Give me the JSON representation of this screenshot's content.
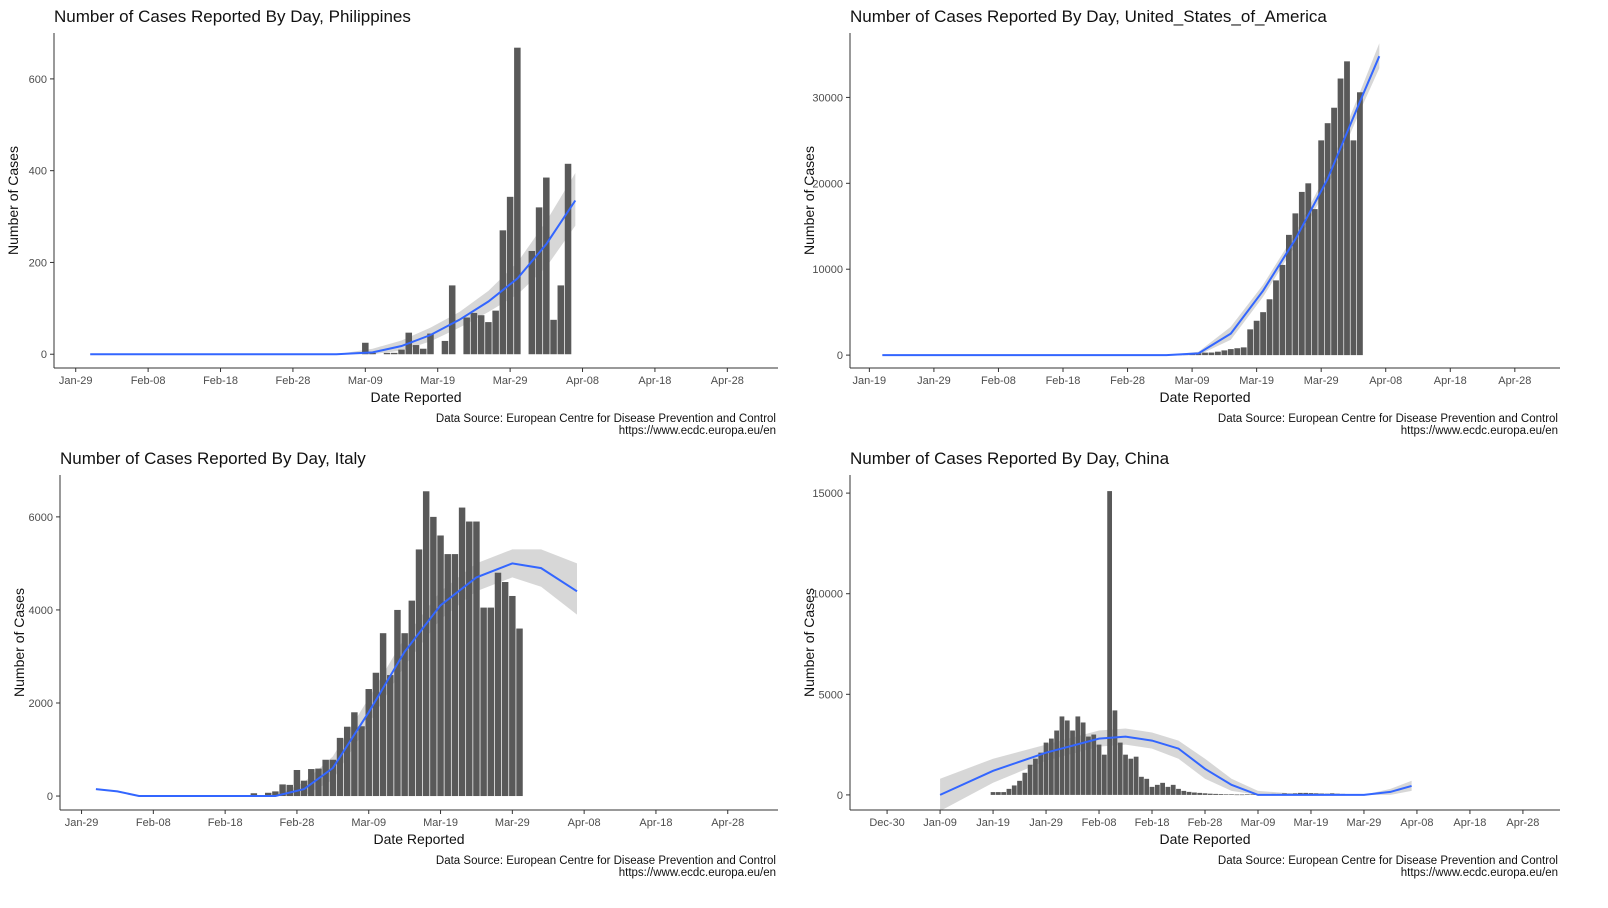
{
  "caption_line1": "Data Source: European Centre for Disease Prevention and Control",
  "caption_line2": "https://www.ecdc.europa.eu/en",
  "chart_data": [
    {
      "type": "bar",
      "title": "Number of Cases Reported By Day, Philippines",
      "xlabel": "Date Reported",
      "ylabel": "Number of Cases",
      "colors": {
        "bars": "#595959",
        "trend": "#3366ff",
        "band": "#bdbdbd"
      },
      "xlim": [
        "2020-01-26",
        "2020-05-05"
      ],
      "ylim": [
        -30,
        700
      ],
      "x_ticks": [
        "2020-01-29",
        "2020-02-08",
        "2020-02-18",
        "2020-02-28",
        "2020-03-09",
        "2020-03-19",
        "2020-03-29",
        "2020-04-08",
        "2020-04-18",
        "2020-04-28"
      ],
      "x_tick_labels": [
        "Jan-29",
        "Feb-08",
        "Feb-18",
        "Feb-28",
        "Mar-09",
        "Mar-19",
        "Mar-29",
        "Apr-08",
        "Apr-18",
        "Apr-28"
      ],
      "y_ticks": [
        0,
        200,
        400,
        600
      ],
      "y_tick_labels": [
        "0",
        "200",
        "400",
        "600"
      ],
      "grid": false,
      "legend": "none",
      "series": [
        {
          "start": "2020-03-01",
          "values": [
            0,
            0,
            0,
            0,
            0,
            0,
            0,
            0,
            25,
            3,
            0,
            3,
            3,
            10,
            47,
            20,
            12,
            45,
            0,
            29,
            150,
            0,
            80,
            90,
            85,
            70,
            95,
            270,
            343,
            668,
            0,
            225,
            320,
            385,
            75,
            150,
            415
          ]
        }
      ],
      "trend": {
        "x": [
          "2020-01-31",
          "2020-02-18",
          "2020-03-05",
          "2020-03-10",
          "2020-03-14",
          "2020-03-18",
          "2020-03-22",
          "2020-03-26",
          "2020-03-30",
          "2020-04-03",
          "2020-04-07"
        ],
        "y": [
          0,
          0,
          0,
          4,
          18,
          42,
          75,
          115,
          165,
          240,
          335
        ],
        "lower": [
          0,
          0,
          0,
          0,
          8,
          28,
          58,
          92,
          130,
          190,
          280
        ],
        "upper": [
          0,
          0,
          0,
          12,
          30,
          58,
          92,
          138,
          200,
          290,
          395
        ]
      }
    },
    {
      "type": "bar",
      "title": "Number of Cases Reported By Day, United_States_of_America",
      "xlabel": "Date Reported",
      "ylabel": "Number of Cases",
      "colors": {
        "bars": "#595959",
        "trend": "#3366ff",
        "band": "#bdbdbd"
      },
      "xlim": [
        "2020-01-16",
        "2020-05-05"
      ],
      "ylim": [
        -1500,
        37500
      ],
      "x_ticks": [
        "2020-01-19",
        "2020-01-29",
        "2020-02-08",
        "2020-02-18",
        "2020-02-28",
        "2020-03-09",
        "2020-03-19",
        "2020-03-29",
        "2020-04-08",
        "2020-04-18",
        "2020-04-28"
      ],
      "x_tick_labels": [
        "Jan-19",
        "Jan-29",
        "Feb-08",
        "Feb-18",
        "Feb-28",
        "Mar-09",
        "Mar-19",
        "Mar-29",
        "Apr-08",
        "Apr-18",
        "Apr-28"
      ],
      "y_ticks": [
        0,
        10000,
        20000,
        30000
      ],
      "y_tick_labels": [
        "0",
        "10000",
        "20000",
        "30000"
      ],
      "grid": false,
      "legend": "none",
      "series": [
        {
          "start": "2020-03-01",
          "values": [
            15,
            10,
            20,
            30,
            40,
            60,
            80,
            100,
            120,
            200,
            290,
            300,
            400,
            550,
            700,
            800,
            900,
            3000,
            4000,
            5000,
            6500,
            8700,
            10500,
            14000,
            16500,
            19000,
            20000,
            17000,
            25000,
            27000,
            28800,
            32200,
            34200,
            25000,
            30600
          ]
        }
      ],
      "trend": {
        "x": [
          "2020-01-21",
          "2020-02-15",
          "2020-03-05",
          "2020-03-10",
          "2020-03-15",
          "2020-03-20",
          "2020-03-25",
          "2020-03-30",
          "2020-04-04",
          "2020-04-07"
        ],
        "y": [
          0,
          0,
          0,
          200,
          2500,
          7500,
          13500,
          20500,
          29500,
          34800
        ],
        "lower": [
          0,
          0,
          0,
          0,
          1800,
          6800,
          12800,
          19600,
          28400,
          33400
        ],
        "upper": [
          0,
          0,
          0,
          400,
          3300,
          8200,
          14200,
          21400,
          30600,
          36300
        ]
      }
    },
    {
      "type": "bar",
      "title": "Number of Cases Reported By Day, Italy",
      "xlabel": "Date Reported",
      "ylabel": "Number of Cases",
      "colors": {
        "bars": "#595959",
        "trend": "#3366ff",
        "band": "#bdbdbd"
      },
      "xlim": [
        "2020-01-26",
        "2020-05-05"
      ],
      "ylim": [
        -300,
        6900
      ],
      "x_ticks": [
        "2020-01-29",
        "2020-02-08",
        "2020-02-18",
        "2020-02-28",
        "2020-03-09",
        "2020-03-19",
        "2020-03-29",
        "2020-04-08",
        "2020-04-18",
        "2020-04-28"
      ],
      "x_tick_labels": [
        "Jan-29",
        "Feb-08",
        "Feb-18",
        "Feb-28",
        "Mar-09",
        "Mar-19",
        "Mar-29",
        "Apr-08",
        "Apr-18",
        "Apr-28"
      ],
      "y_ticks": [
        0,
        2000,
        4000,
        6000
      ],
      "y_tick_labels": [
        "0",
        "2000",
        "4000",
        "6000"
      ],
      "grid": false,
      "legend": "none",
      "series": [
        {
          "start": "2020-02-22",
          "values": [
            60,
            20,
            70,
            100,
            250,
            240,
            560,
            330,
            580,
            590,
            780,
            780,
            1250,
            1490,
            1800,
            1500,
            2300,
            2650,
            3500,
            2600,
            4000,
            3500,
            4200,
            5300,
            6550,
            6000,
            5600,
            5200,
            5200,
            6200,
            5900,
            5900,
            4050,
            4050,
            4800,
            4600,
            4300,
            3600
          ]
        }
      ],
      "trend": {
        "x": [
          "2020-01-31",
          "2020-02-03",
          "2020-02-06",
          "2020-02-15",
          "2020-02-25",
          "2020-02-29",
          "2020-03-04",
          "2020-03-09",
          "2020-03-14",
          "2020-03-19",
          "2020-03-24",
          "2020-03-29",
          "2020-04-02",
          "2020-04-07"
        ],
        "y": [
          150,
          100,
          0,
          0,
          0,
          150,
          600,
          1800,
          3100,
          4100,
          4700,
          5000,
          4900,
          4400
        ],
        "lower": [
          150,
          100,
          0,
          0,
          0,
          0,
          350,
          1550,
          2800,
          3800,
          4400,
          4700,
          4500,
          3900
        ],
        "upper": [
          150,
          100,
          0,
          0,
          0,
          300,
          850,
          2100,
          3400,
          4400,
          5000,
          5300,
          5300,
          5000
        ]
      }
    },
    {
      "type": "bar",
      "title": "Number of Cases Reported By Day, China",
      "xlabel": "Date Reported",
      "ylabel": "Number of Cases",
      "colors": {
        "bars": "#595959",
        "trend": "#3366ff",
        "band": "#bdbdbd"
      },
      "xlim": [
        "2019-12-23",
        "2020-05-05"
      ],
      "ylim": [
        -750,
        15900
      ],
      "x_ticks": [
        "2019-12-30",
        "2020-01-09",
        "2020-01-19",
        "2020-01-29",
        "2020-02-08",
        "2020-02-18",
        "2020-02-28",
        "2020-03-09",
        "2020-03-19",
        "2020-03-29",
        "2020-04-08",
        "2020-04-18",
        "2020-04-28"
      ],
      "x_tick_labels": [
        "Dec-30",
        "Jan-09",
        "Jan-19",
        "Jan-29",
        "Feb-08",
        "Feb-18",
        "Feb-28",
        "Mar-09",
        "Mar-19",
        "Mar-29",
        "Apr-08",
        "Apr-18",
        "Apr-28"
      ],
      "y_ticks": [
        0,
        5000,
        10000,
        15000
      ],
      "y_tick_labels": [
        "0",
        "5000",
        "10000",
        "15000"
      ],
      "grid": false,
      "legend": "none",
      "series": [
        {
          "start": "2020-01-19",
          "values": [
            140,
            140,
            140,
            300,
            470,
            700,
            1100,
            1500,
            1800,
            2100,
            2600,
            2800,
            3200,
            3900,
            3700,
            3200,
            3900,
            3600,
            2900,
            3000,
            2500,
            2000,
            15100,
            4200,
            2600,
            2000,
            1800,
            1900,
            900,
            800,
            400,
            500,
            600,
            400,
            500,
            300,
            200,
            150,
            120,
            100,
            80,
            60,
            50,
            40,
            30,
            30,
            20,
            20,
            30,
            30,
            40,
            40,
            40,
            50,
            50,
            80,
            60,
            80,
            100,
            100,
            90,
            80,
            70,
            60,
            80,
            60,
            50,
            40,
            30
          ]
        }
      ],
      "trend": {
        "x": [
          "2020-01-09",
          "2020-01-19",
          "2020-01-29",
          "2020-02-08",
          "2020-02-13",
          "2020-02-18",
          "2020-02-23",
          "2020-02-28",
          "2020-03-04",
          "2020-03-09",
          "2020-03-19",
          "2020-03-29",
          "2020-04-03",
          "2020-04-07"
        ],
        "y": [
          0,
          1200,
          2100,
          2800,
          2900,
          2700,
          2300,
          1300,
          500,
          0,
          0,
          0,
          150,
          450
        ],
        "lower": [
          -800,
          600,
          1700,
          2400,
          2500,
          2300,
          1800,
          800,
          200,
          0,
          0,
          0,
          0,
          200
        ],
        "upper": [
          800,
          1800,
          2500,
          3200,
          3300,
          3100,
          2700,
          1800,
          800,
          200,
          0,
          0,
          300,
          700
        ]
      }
    }
  ]
}
